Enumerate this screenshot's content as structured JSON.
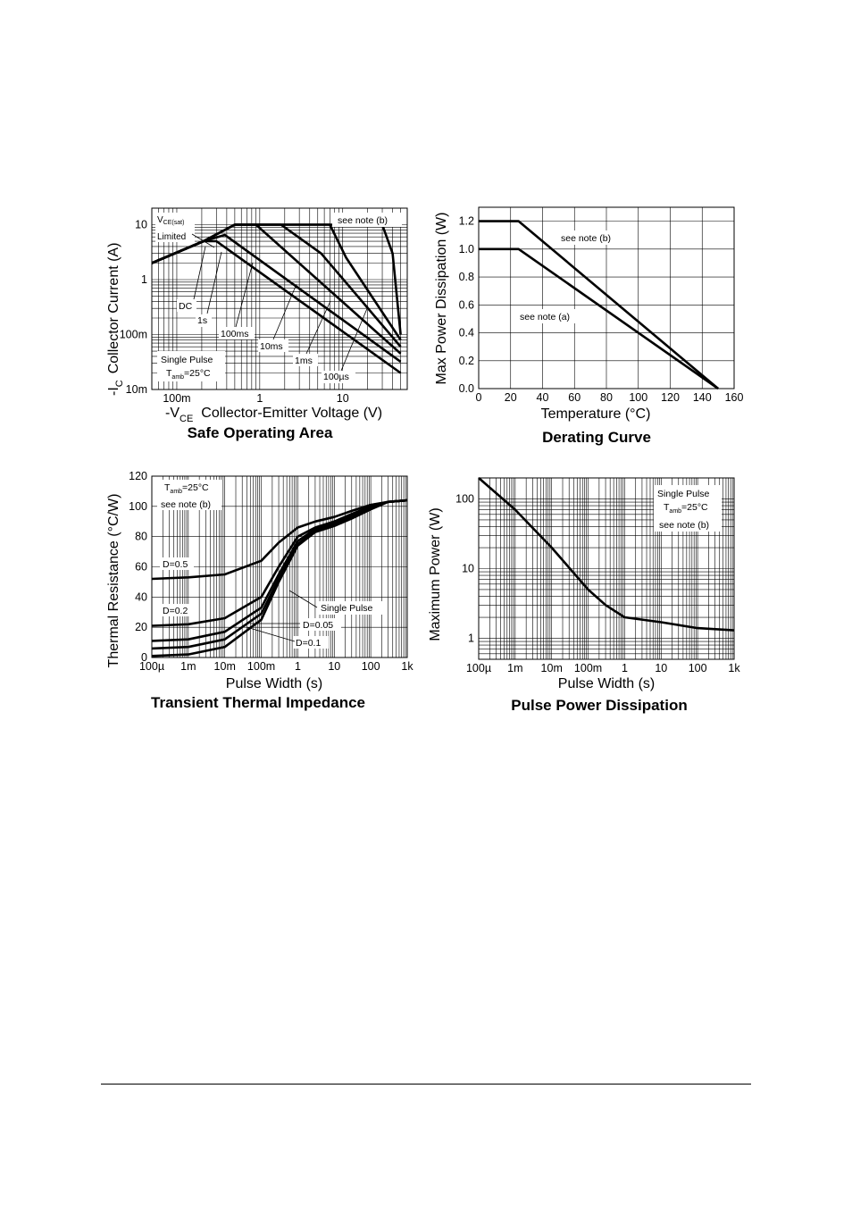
{
  "chart_data": [
    {
      "id": "soa",
      "type": "line",
      "title": "Safe Operating Area",
      "xlabel": {
        "main": "-V",
        "sub": "CE",
        "rest": "Collector-Emitter Voltage (V)"
      },
      "ylabel": {
        "main": "-I",
        "sub": "C",
        "rest": "Collector Current (A)"
      },
      "x_scale": "log",
      "y_scale": "log",
      "xlim": [
        0.05,
        60
      ],
      "ylim": [
        0.01,
        20
      ],
      "x_ticks": [
        {
          "v": 0.1,
          "label": "100m"
        },
        {
          "v": 1,
          "label": "1"
        },
        {
          "v": 10,
          "label": "10"
        }
      ],
      "y_ticks": [
        {
          "v": 0.01,
          "label": "10m"
        },
        {
          "v": 0.1,
          "label": "100m"
        },
        {
          "v": 1,
          "label": "1"
        },
        {
          "v": 10,
          "label": "10"
        }
      ],
      "series": [
        {
          "name": "DC",
          "points": [
            [
              0.05,
              2
            ],
            [
              0.21,
              5
            ],
            [
              0.3,
              5
            ],
            [
              50,
              0.02
            ]
          ]
        },
        {
          "name": "1s",
          "points": [
            [
              0.05,
              2
            ],
            [
              0.21,
              5
            ],
            [
              0.38,
              6.5
            ],
            [
              50,
              0.032
            ]
          ]
        },
        {
          "name": "100ms",
          "points": [
            [
              0.05,
              2
            ],
            [
              0.21,
              5
            ],
            [
              0.5,
              10
            ],
            [
              0.9,
              10
            ],
            [
              50,
              0.045
            ]
          ]
        },
        {
          "name": "10ms",
          "points": [
            [
              0.05,
              2
            ],
            [
              0.21,
              5
            ],
            [
              0.5,
              10
            ],
            [
              1.8,
              10
            ],
            [
              5.5,
              3
            ],
            [
              50,
              0.06
            ]
          ]
        },
        {
          "name": "1ms",
          "points": [
            [
              0.05,
              2
            ],
            [
              0.21,
              5
            ],
            [
              0.5,
              10
            ],
            [
              7,
              10
            ],
            [
              11,
              2.5
            ],
            [
              50,
              0.08
            ]
          ]
        },
        {
          "name": "100µs",
          "points": [
            [
              0.05,
              2
            ],
            [
              0.21,
              5
            ],
            [
              0.5,
              10
            ],
            [
              30,
              10
            ],
            [
              40,
              3
            ],
            [
              50,
              0.1
            ]
          ]
        }
      ],
      "annotations": {
        "vce_main": "V",
        "vce_sub": "CE(sat)",
        "limited": "Limited",
        "note": "see note (b)",
        "single_pulse": "Single Pulse",
        "tamb_main": "T",
        "tamb_sub": "amb",
        "tamb_rest": "=25°C",
        "dc": "DC",
        "s1": "1s",
        "ms100": "100ms",
        "ms10": "10ms",
        "ms1": "1ms",
        "us100": "100µs"
      }
    },
    {
      "id": "derating",
      "type": "line",
      "title": "Derating Curve",
      "xlabel": "Temperature (°C)",
      "ylabel": "Max Power Dissipation (W)",
      "xlim": [
        0,
        160
      ],
      "ylim": [
        0,
        1.3
      ],
      "x_ticks": [
        0,
        20,
        40,
        60,
        80,
        100,
        120,
        140,
        160
      ],
      "y_ticks": [
        "0.0",
        "0.2",
        "0.4",
        "0.6",
        "0.8",
        "1.0",
        "1.2"
      ],
      "series": [
        {
          "name": "see note (b)",
          "x": [
            0,
            25,
            150
          ],
          "y": [
            1.2,
            1.2,
            0
          ]
        },
        {
          "name": "see note (a)",
          "x": [
            0,
            25,
            150
          ],
          "y": [
            1.0,
            1.0,
            0
          ]
        }
      ]
    },
    {
      "id": "thermal",
      "type": "line",
      "title": "Transient Thermal Impedance",
      "xlabel": "Pulse Width (s)",
      "ylabel": "Thermal Resistance (°C/W)",
      "x_scale": "log",
      "xlim": [
        0.0001,
        1000
      ],
      "ylim": [
        0,
        120
      ],
      "x_ticks": [
        {
          "v": 0.0001,
          "label": "100µ"
        },
        {
          "v": 0.001,
          "label": "1m"
        },
        {
          "v": 0.01,
          "label": "10m"
        },
        {
          "v": 0.1,
          "label": "100m"
        },
        {
          "v": 1,
          "label": "1"
        },
        {
          "v": 10,
          "label": "10"
        },
        {
          "v": 100,
          "label": "100"
        },
        {
          "v": 1000,
          "label": "1k"
        }
      ],
      "y_ticks": [
        0,
        20,
        40,
        60,
        80,
        100,
        120
      ],
      "series": [
        {
          "name": "D=0.5",
          "points": [
            [
              0.0001,
              52
            ],
            [
              0.001,
              53
            ],
            [
              0.01,
              55
            ],
            [
              0.1,
              64
            ],
            [
              0.3,
              76
            ],
            [
              1,
              86
            ],
            [
              3,
              90
            ],
            [
              10,
              93
            ],
            [
              30,
              97
            ],
            [
              100,
              101
            ],
            [
              300,
              103
            ],
            [
              1000,
              104
            ]
          ]
        },
        {
          "name": "D=0.2",
          "points": [
            [
              0.0001,
              21
            ],
            [
              0.001,
              22
            ],
            [
              0.01,
              26
            ],
            [
              0.1,
              40
            ],
            [
              0.3,
              60
            ],
            [
              1,
              80
            ],
            [
              3,
              86
            ],
            [
              10,
              90
            ],
            [
              30,
              95
            ],
            [
              100,
              100
            ],
            [
              300,
              103
            ],
            [
              1000,
              104
            ]
          ]
        },
        {
          "name": "D=0.1",
          "points": [
            [
              0.0001,
              11
            ],
            [
              0.001,
              12
            ],
            [
              0.01,
              17
            ],
            [
              0.1,
              33
            ],
            [
              0.3,
              55
            ],
            [
              1,
              77
            ],
            [
              3,
              85
            ],
            [
              10,
              89
            ],
            [
              30,
              94
            ],
            [
              100,
              100
            ],
            [
              300,
              103
            ],
            [
              1000,
              104
            ]
          ]
        },
        {
          "name": "D=0.05",
          "points": [
            [
              0.0001,
              6
            ],
            [
              0.001,
              7
            ],
            [
              0.01,
              12
            ],
            [
              0.1,
              29
            ],
            [
              0.3,
              52
            ],
            [
              1,
              75
            ],
            [
              3,
              84
            ],
            [
              10,
              88
            ],
            [
              30,
              93
            ],
            [
              100,
              99
            ],
            [
              300,
              103
            ],
            [
              1000,
              104
            ]
          ]
        },
        {
          "name": "Single Pulse",
          "points": [
            [
              0.0001,
              1
            ],
            [
              0.001,
              2
            ],
            [
              0.01,
              7
            ],
            [
              0.1,
              25
            ],
            [
              0.3,
              50
            ],
            [
              1,
              74
            ],
            [
              3,
              83
            ],
            [
              10,
              87
            ],
            [
              30,
              92
            ],
            [
              100,
              98
            ],
            [
              300,
              103
            ],
            [
              1000,
              104
            ]
          ]
        }
      ],
      "annotations": {
        "tamb_main": "T",
        "tamb_sub": "amb",
        "tamb_rest": "=25°C",
        "note": "see note (b)",
        "d05": "D=0.5",
        "d02": "D=0.2",
        "single": "Single Pulse",
        "d005": "D=0.05",
        "d01": "D=0.1"
      }
    },
    {
      "id": "pulse",
      "type": "line",
      "title": "Pulse Power Dissipation",
      "xlabel": "Pulse Width (s)",
      "ylabel": "Maximum Power (W)",
      "x_scale": "log",
      "y_scale": "log",
      "xlim": [
        0.0001,
        1000
      ],
      "ylim": [
        0.5,
        200
      ],
      "x_ticks": [
        {
          "v": 0.0001,
          "label": "100µ"
        },
        {
          "v": 0.001,
          "label": "1m"
        },
        {
          "v": 0.01,
          "label": "10m"
        },
        {
          "v": 0.1,
          "label": "100m"
        },
        {
          "v": 1,
          "label": "1"
        },
        {
          "v": 10,
          "label": "10"
        },
        {
          "v": 100,
          "label": "100"
        },
        {
          "v": 1000,
          "label": "1k"
        }
      ],
      "y_ticks": [
        {
          "v": 1,
          "label": "1"
        },
        {
          "v": 10,
          "label": "10"
        },
        {
          "v": 100,
          "label": "100"
        }
      ],
      "series": [
        {
          "name": "Single Pulse",
          "points": [
            [
              0.0001,
              200
            ],
            [
              0.001,
              70
            ],
            [
              0.01,
              20
            ],
            [
              0.1,
              5
            ],
            [
              0.3,
              3
            ],
            [
              1,
              2
            ],
            [
              10,
              1.7
            ],
            [
              100,
              1.4
            ],
            [
              1000,
              1.3
            ]
          ]
        }
      ],
      "annotations": {
        "single": "Single Pulse",
        "tamb_main": "T",
        "tamb_sub": "amb",
        "tamb_rest": "=25°C",
        "note": "see note (b)"
      }
    }
  ]
}
